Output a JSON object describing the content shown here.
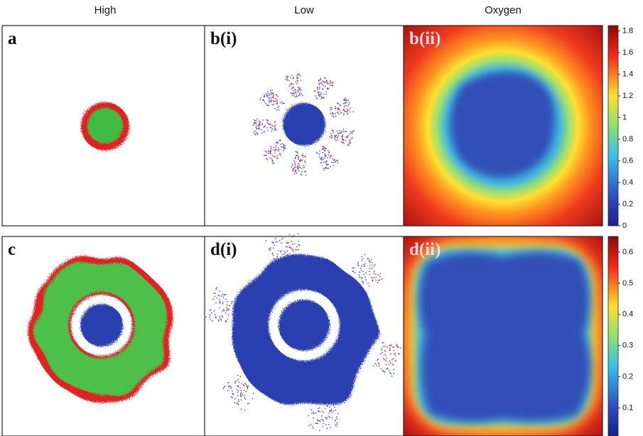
{
  "headers": [
    "High",
    "Low",
    "Oxygen"
  ],
  "labels": [
    "a",
    "b(i)",
    "b(ii)",
    "c",
    "d(i)",
    "d(ii)"
  ],
  "colorbars": [
    {
      "lim": [
        0,
        1.85
      ],
      "ticks": [
        0,
        0.2,
        0.4,
        0.6,
        0.8,
        1,
        1.2,
        1.4,
        1.6,
        1.8
      ]
    },
    {
      "lim": [
        0.01,
        0.65
      ],
      "ticks": [
        0.1,
        0.2,
        0.3,
        0.4,
        0.5,
        0.6
      ]
    }
  ]
}
